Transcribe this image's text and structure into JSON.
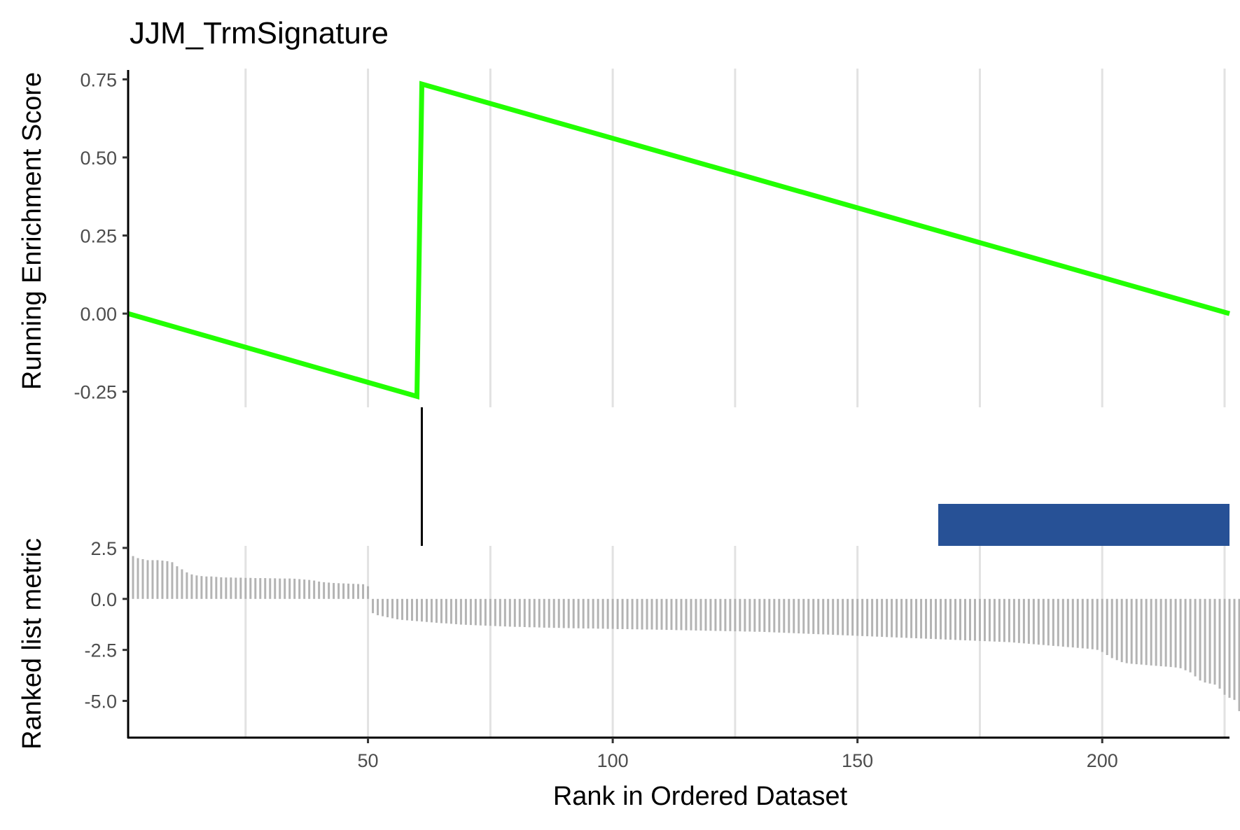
{
  "chart_data": {
    "type": "line",
    "title": "JJM_TrmSignature",
    "xlabel": "Rank in Ordered Dataset",
    "xlim": [
      1,
      226
    ],
    "x_ticks": [
      50,
      100,
      150,
      200
    ],
    "x_tick_labels": [
      "50",
      "100",
      "150",
      "200"
    ],
    "grid": "vertical major and minor lines",
    "panels": [
      {
        "name": "running-score",
        "ylabel": "Running Enrichment Score",
        "ylim": [
          -0.3,
          0.78
        ],
        "y_ticks": [
          -0.25,
          0,
          0.25,
          0.5,
          0.75
        ],
        "y_tick_labels": [
          "-0.25",
          "0.00",
          "0.25",
          "0.50",
          "0.75"
        ],
        "series": [
          {
            "color": "#22ff00",
            "x": [
              1,
              60,
              61,
              226
            ],
            "y": [
              0,
              -0.265,
              0.735,
              0
            ]
          }
        ]
      },
      {
        "name": "hit-markers",
        "hits_x": [
          61
        ],
        "hit_color": "#000000",
        "band": {
          "x_start": 166.5,
          "x_end": 226,
          "color": "#275196"
        }
      },
      {
        "name": "ranked-metric",
        "ylabel": "Ranked list metric",
        "ylim": [
          -6.8,
          2.6
        ],
        "y_ticks": [
          -5,
          -2.5,
          0,
          2.5
        ],
        "y_tick_labels": [
          "-5.0",
          "-2.5",
          "0.0",
          "2.5"
        ],
        "bar_color": "#b3b3b3",
        "values": [
          2.2,
          2.1,
          2.0,
          1.95,
          1.9,
          1.9,
          1.9,
          1.88,
          1.85,
          1.8,
          1.6,
          1.45,
          1.3,
          1.2,
          1.15,
          1.12,
          1.1,
          1.1,
          1.08,
          1.06,
          1.05,
          1.05,
          1.04,
          1.04,
          1.03,
          1.03,
          1.02,
          1.02,
          1.02,
          1.01,
          1.01,
          1.0,
          1.0,
          1.0,
          0.99,
          0.97,
          0.95,
          0.93,
          0.9,
          0.85,
          0.82,
          0.8,
          0.78,
          0.77,
          0.76,
          0.75,
          0.74,
          0.73,
          0.72,
          0.62,
          -0.7,
          -0.8,
          -0.85,
          -0.9,
          -0.95,
          -1.0,
          -1.03,
          -1.05,
          -1.07,
          -1.09,
          -1.11,
          -1.13,
          -1.15,
          -1.17,
          -1.19,
          -1.2,
          -1.22,
          -1.24,
          -1.26,
          -1.27,
          -1.28,
          -1.29,
          -1.3,
          -1.31,
          -1.32,
          -1.33,
          -1.34,
          -1.35,
          -1.36,
          -1.37,
          -1.37,
          -1.38,
          -1.39,
          -1.39,
          -1.4,
          -1.41,
          -1.41,
          -1.42,
          -1.42,
          -1.43,
          -1.43,
          -1.44,
          -1.44,
          -1.45,
          -1.45,
          -1.45,
          -1.46,
          -1.46,
          -1.47,
          -1.47,
          -1.48,
          -1.48,
          -1.48,
          -1.49,
          -1.49,
          -1.5,
          -1.5,
          -1.5,
          -1.51,
          -1.51,
          -1.52,
          -1.52,
          -1.53,
          -1.53,
          -1.54,
          -1.54,
          -1.55,
          -1.55,
          -1.56,
          -1.56,
          -1.57,
          -1.57,
          -1.58,
          -1.58,
          -1.59,
          -1.59,
          -1.6,
          -1.6,
          -1.61,
          -1.61,
          -1.62,
          -1.63,
          -1.64,
          -1.65,
          -1.66,
          -1.67,
          -1.68,
          -1.69,
          -1.7,
          -1.71,
          -1.72,
          -1.73,
          -1.74,
          -1.75,
          -1.76,
          -1.77,
          -1.78,
          -1.79,
          -1.8,
          -1.81,
          -1.82,
          -1.83,
          -1.84,
          -1.85,
          -1.86,
          -1.87,
          -1.88,
          -1.89,
          -1.9,
          -1.91,
          -1.92,
          -1.93,
          -1.94,
          -1.95,
          -1.96,
          -1.97,
          -1.98,
          -1.99,
          -2.0,
          -2.01,
          -2.02,
          -2.03,
          -2.04,
          -2.05,
          -2.06,
          -2.07,
          -2.08,
          -2.09,
          -2.1,
          -2.11,
          -2.12,
          -2.14,
          -2.16,
          -2.18,
          -2.2,
          -2.22,
          -2.24,
          -2.26,
          -2.28,
          -2.3,
          -2.32,
          -2.34,
          -2.36,
          -2.38,
          -2.4,
          -2.42,
          -2.44,
          -2.47,
          -2.5,
          -2.6,
          -2.75,
          -2.9,
          -3.0,
          -3.1,
          -3.15,
          -3.18,
          -3.2,
          -3.22,
          -3.24,
          -3.26,
          -3.28,
          -3.3,
          -3.32,
          -3.34,
          -3.36,
          -3.4,
          -3.5,
          -3.6,
          -3.8,
          -4.0,
          -4.1,
          -4.15,
          -4.2,
          -4.4,
          -4.7,
          -4.85,
          -4.95,
          -5.5,
          -5.9,
          -6.5
        ]
      }
    ]
  }
}
